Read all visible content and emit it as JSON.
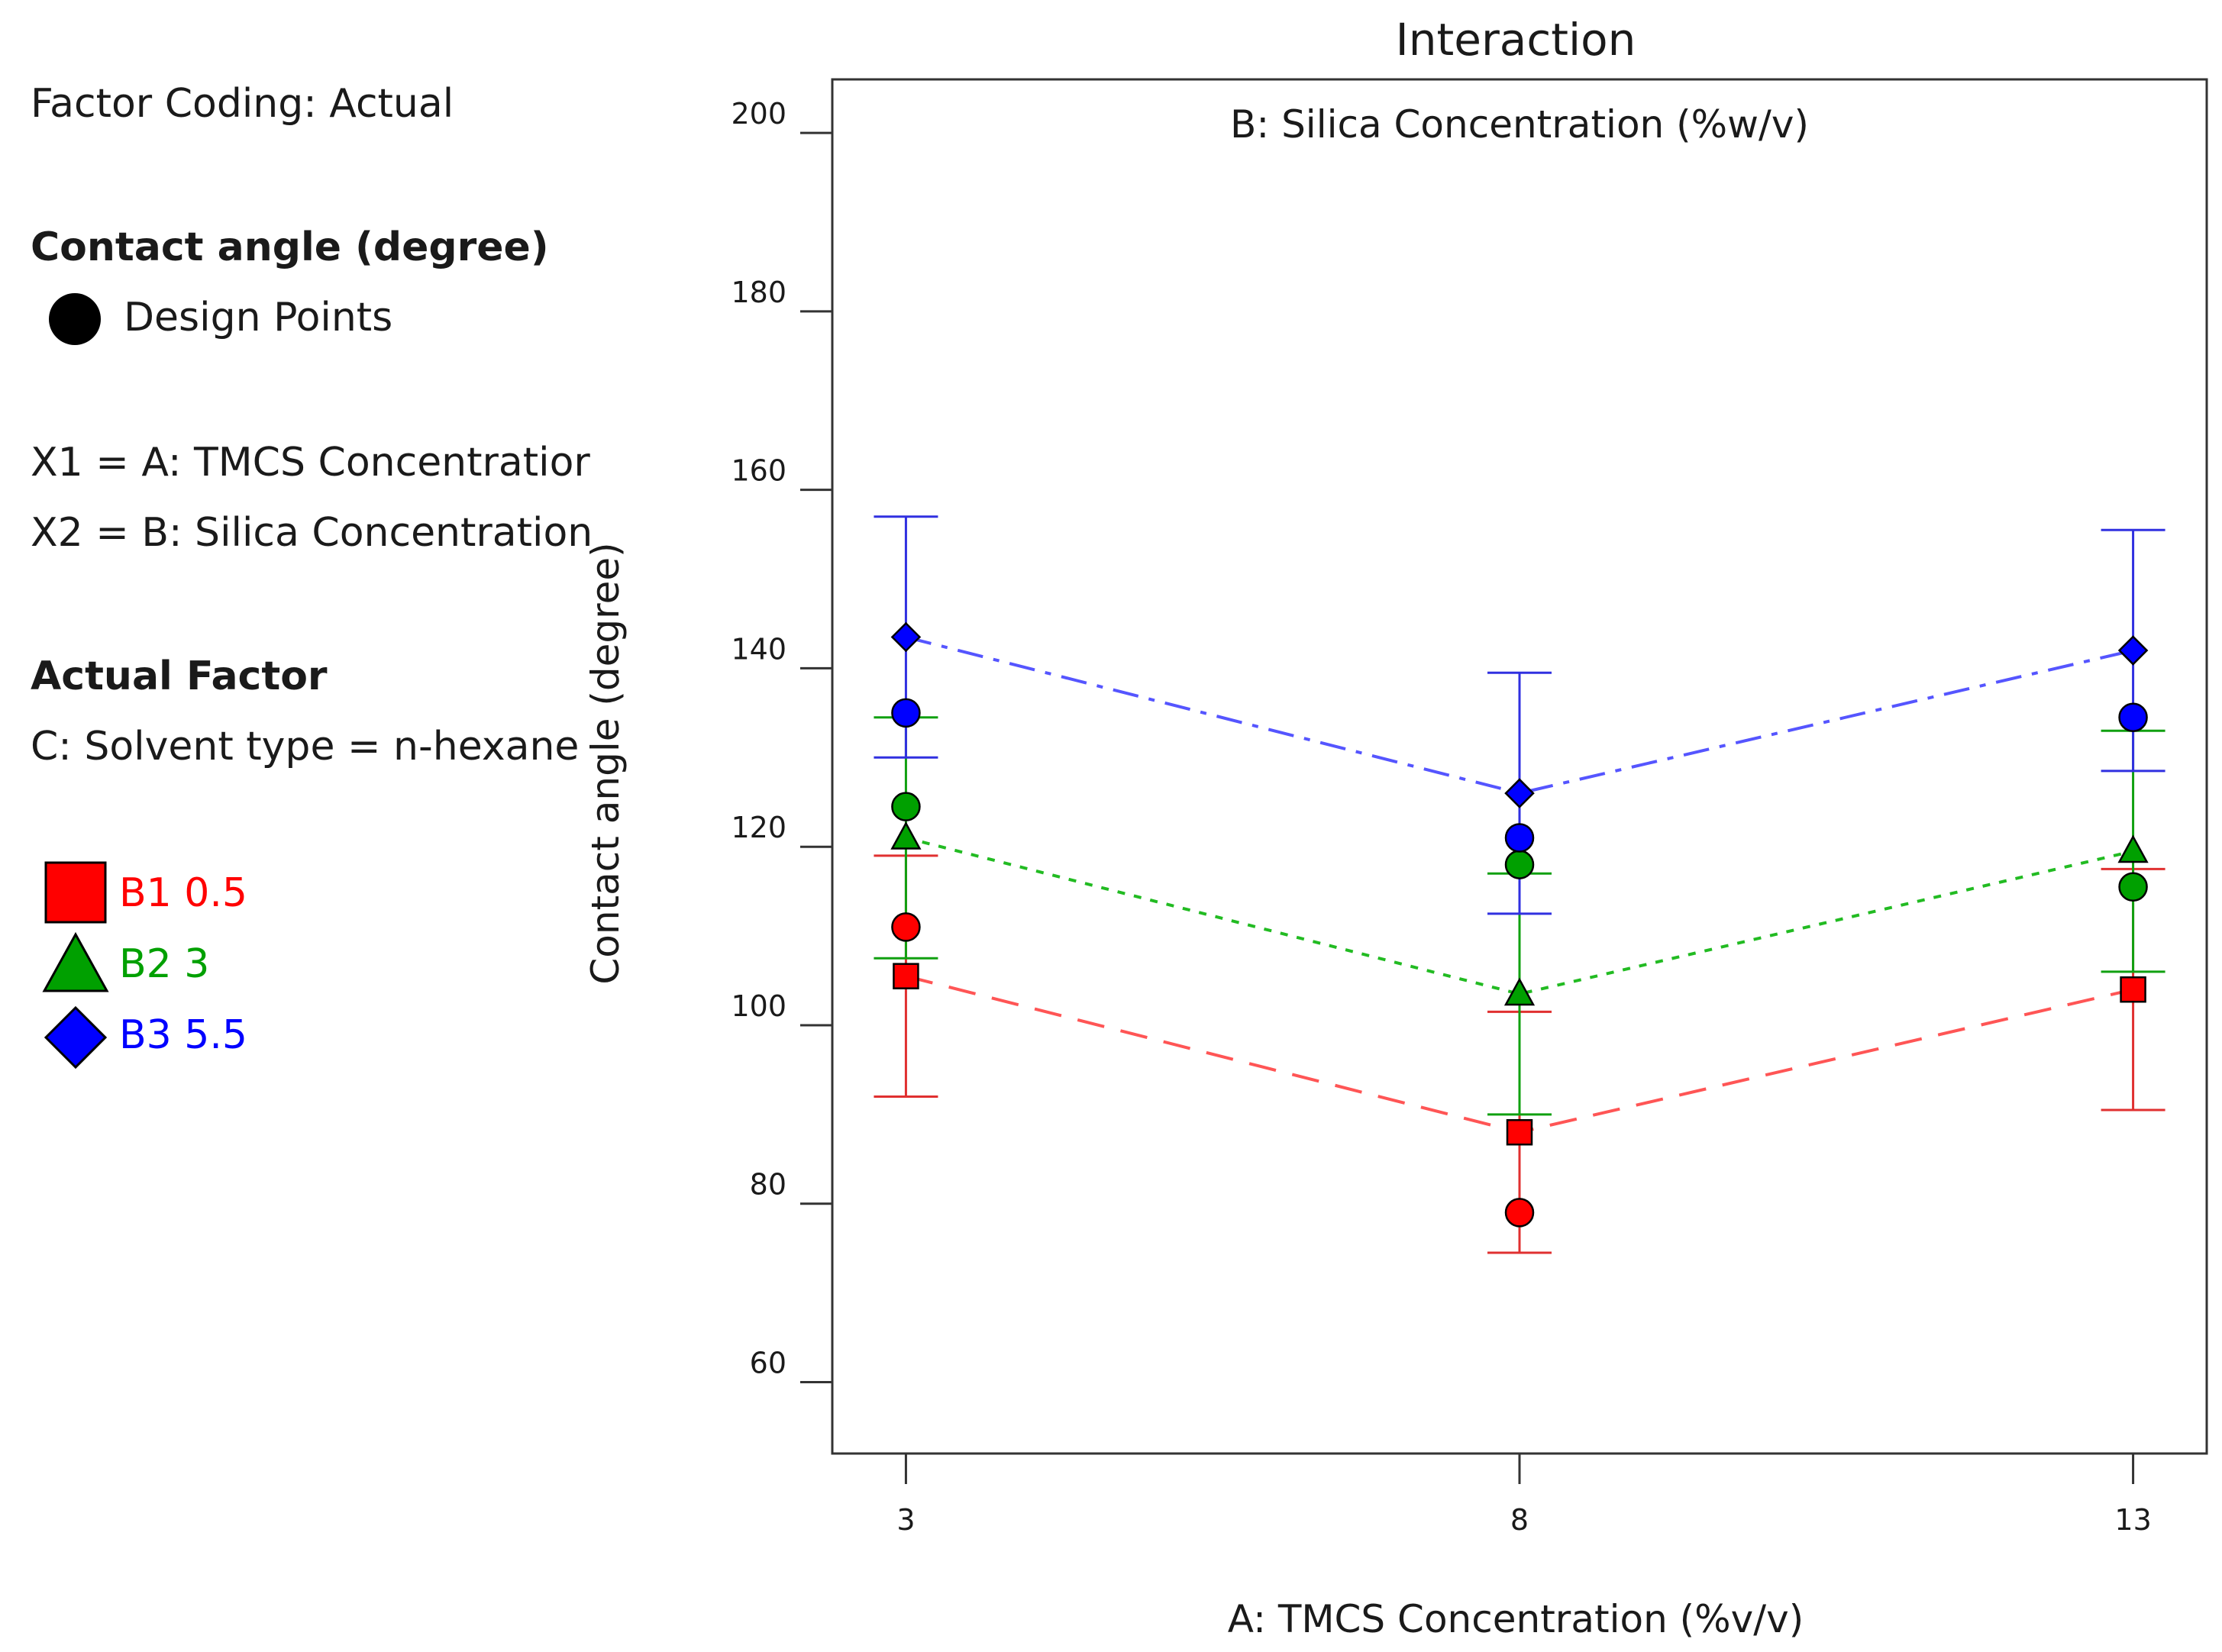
{
  "legend_panel": {
    "factor_coding": "Factor Coding: Actual",
    "response_heading": "Contact angle (degree)",
    "design_points_label": "Design Points",
    "x1_label": "X1 = A: TMCS Concentratior",
    "x2_label": "X2 = B: Silica Concentration",
    "actual_factor_heading": "Actual Factor",
    "actual_factor_value": "C: Solvent type = n-hexane",
    "series": [
      {
        "name": "B1 0.5",
        "color": "#ff0000",
        "marker": "square"
      },
      {
        "name": "B2 3",
        "color": "#00a000",
        "marker": "triangle"
      },
      {
        "name": "B3 5.5",
        "color": "#0000ff",
        "marker": "diamond"
      }
    ]
  },
  "chart_data": {
    "type": "line",
    "title": "Interaction",
    "subtitle": "B: Silica Concentration (%w/v)",
    "xlabel": "A: TMCS Concentration (%v/v)",
    "ylabel": "Contact angle (degree)",
    "x": [
      3,
      8,
      13
    ],
    "x_ticks": [
      "3",
      "8",
      "13"
    ],
    "y_ticks": [
      "60",
      "80",
      "100",
      "120",
      "140",
      "160",
      "180",
      "200"
    ],
    "ylim": [
      52,
      206
    ],
    "xlim": [
      2.4,
      13.6
    ],
    "series": [
      {
        "name": "B1 0.5",
        "color": "#ff0000",
        "marker": "square",
        "line": "dashed",
        "values": [
          105.5,
          88,
          104
        ],
        "upper": [
          119,
          101.5,
          117.5
        ],
        "lower": [
          92,
          74.5,
          90.5
        ]
      },
      {
        "name": "B2 3",
        "color": "#00a000",
        "marker": "triangle",
        "line": "dotted",
        "values": [
          121,
          103.5,
          119.5
        ],
        "upper": [
          134.5,
          117,
          133
        ],
        "lower": [
          107.5,
          90,
          106
        ]
      },
      {
        "name": "B3 5.5",
        "color": "#0000ff",
        "marker": "diamond",
        "line": "dashdot",
        "values": [
          143.5,
          126,
          142
        ],
        "upper": [
          157,
          139.5,
          155.5
        ],
        "lower": [
          130,
          112.5,
          128.5
        ]
      }
    ],
    "design_points": [
      {
        "x": 3,
        "y": 111,
        "color": "#ff0000"
      },
      {
        "x": 3,
        "y": 124.5,
        "color": "#00a000"
      },
      {
        "x": 3,
        "y": 135,
        "color": "#0000ff"
      },
      {
        "x": 8,
        "y": 79,
        "color": "#ff0000"
      },
      {
        "x": 8,
        "y": 118,
        "color": "#00a000"
      },
      {
        "x": 8,
        "y": 121,
        "color": "#0000ff"
      },
      {
        "x": 13,
        "y": 115.5,
        "color": "#00a000"
      },
      {
        "x": 13,
        "y": 134.5,
        "color": "#0000ff"
      }
    ],
    "grid": false,
    "legend_position": "left"
  }
}
